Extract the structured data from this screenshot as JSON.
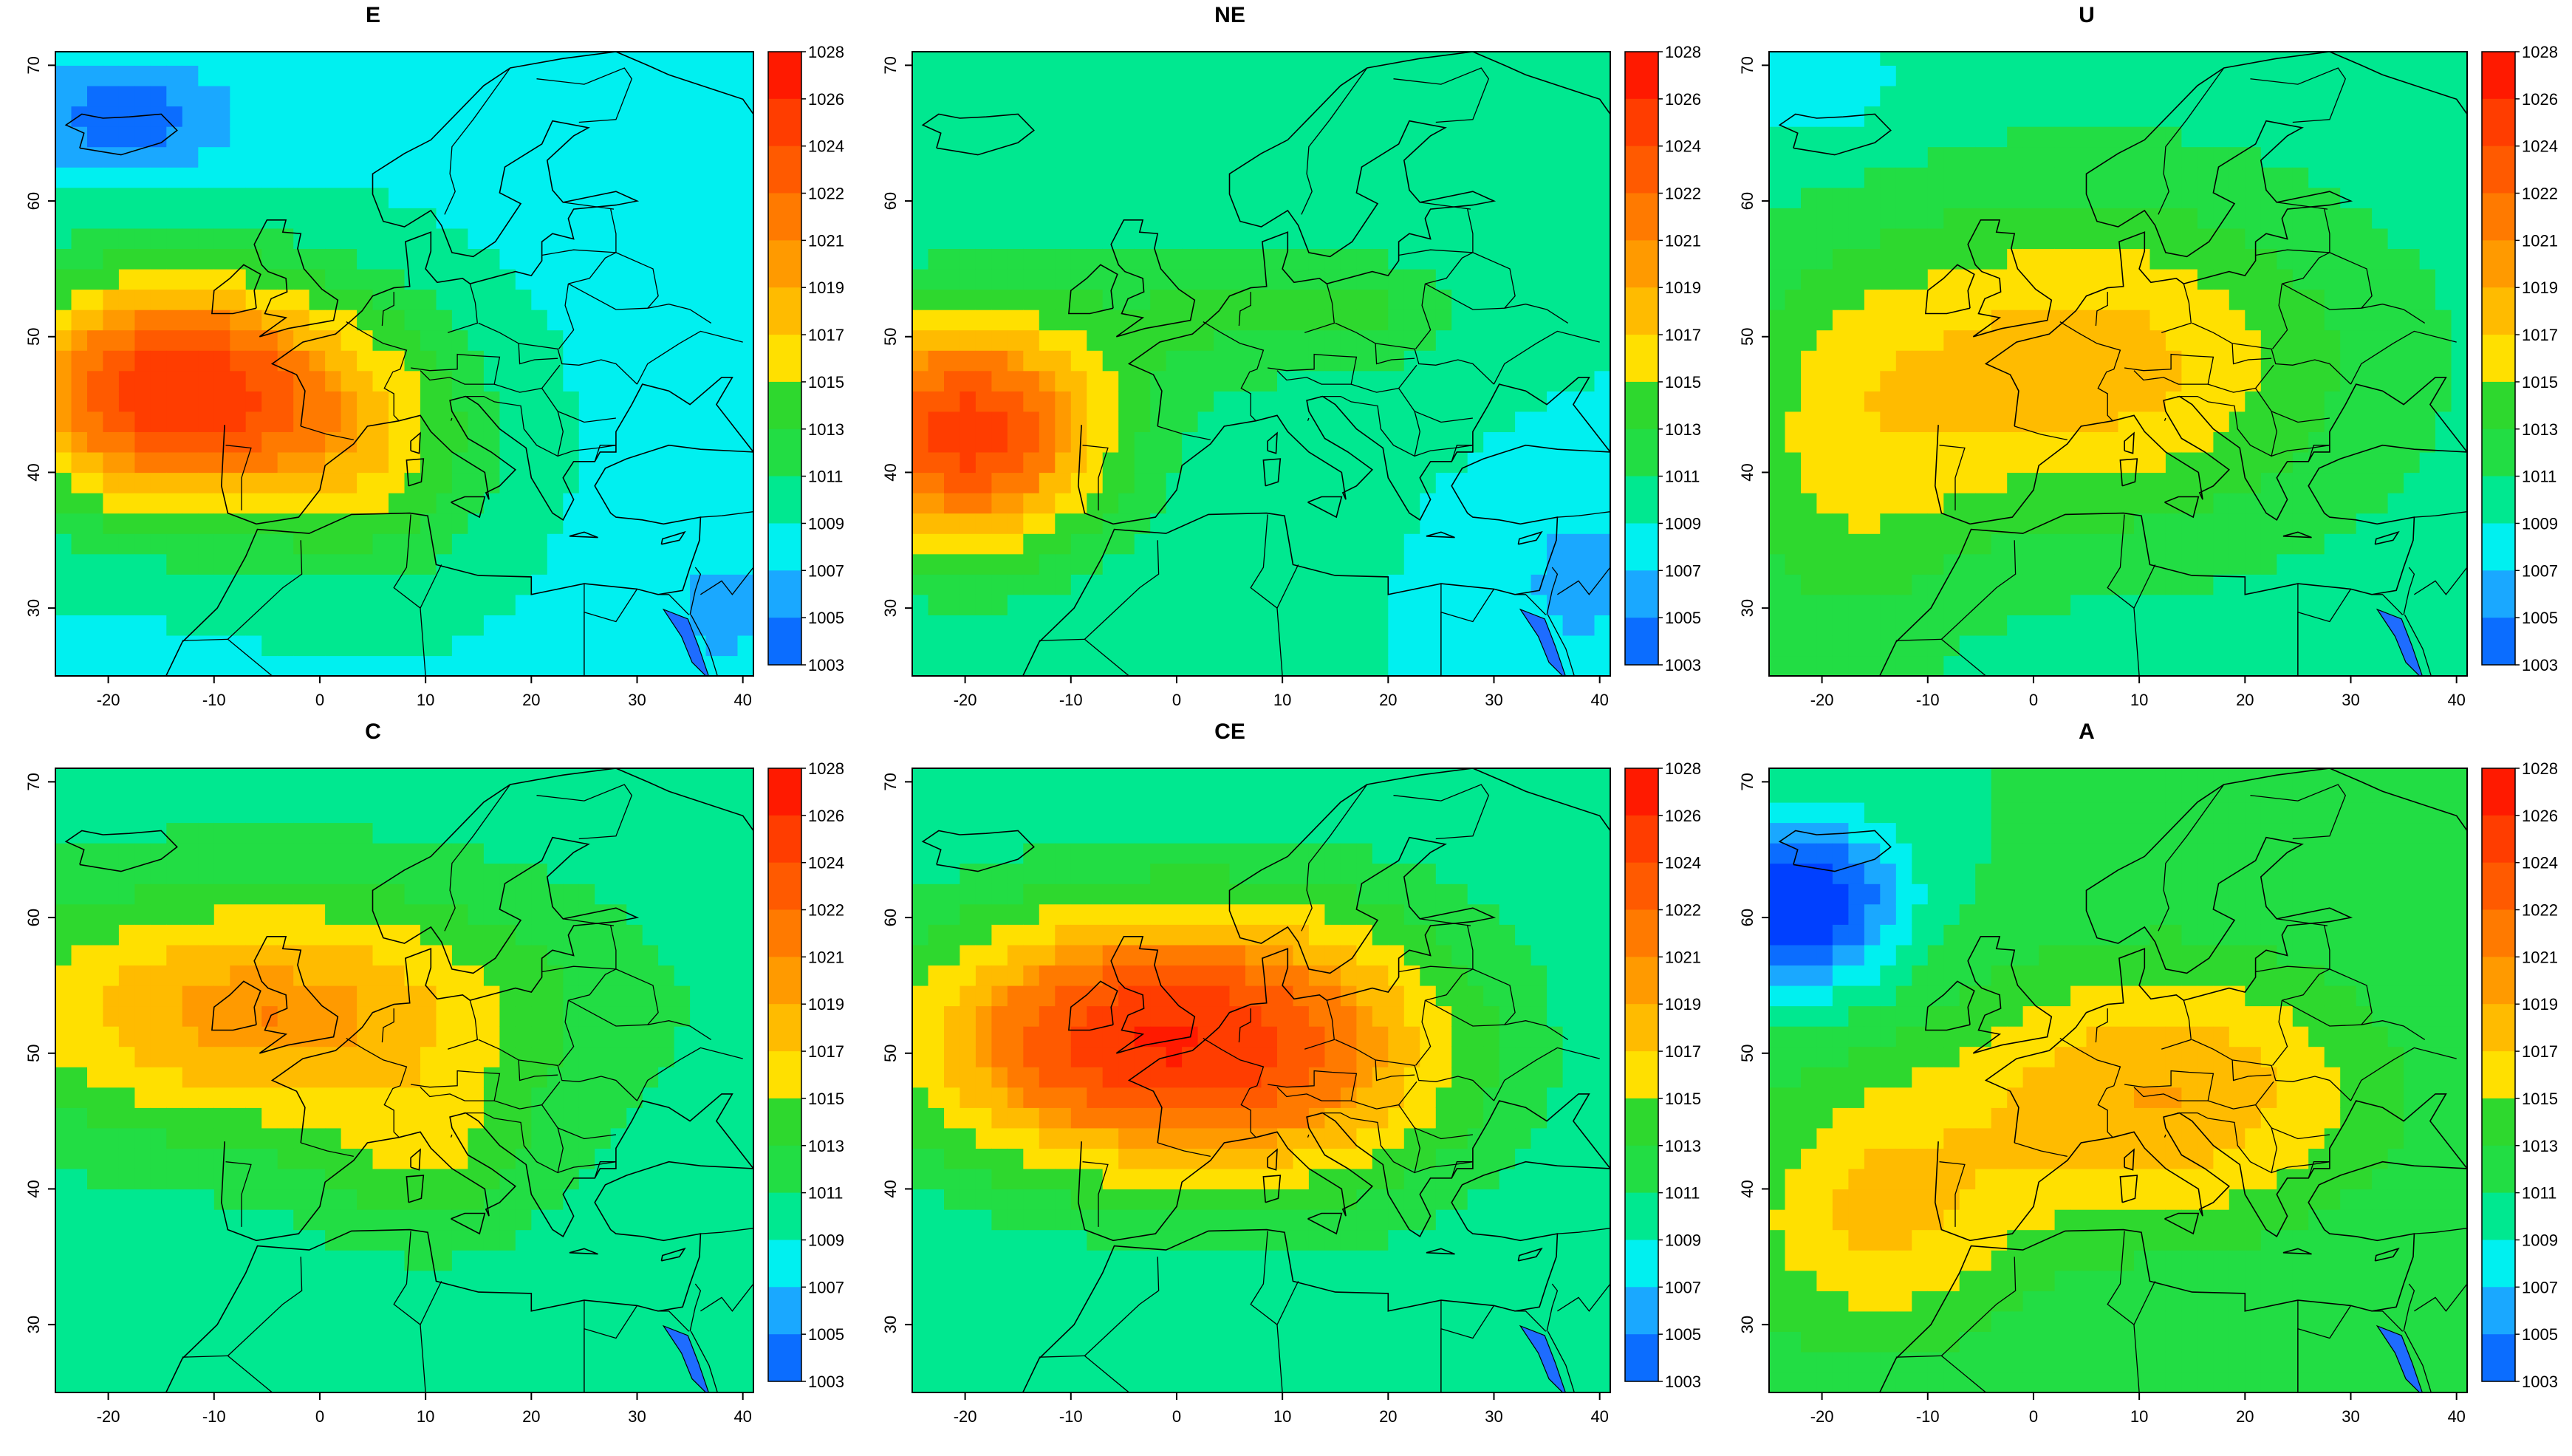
{
  "figure": {
    "x_ticks": [
      "-20",
      "-10",
      "0",
      "10",
      "20",
      "30",
      "40"
    ],
    "y_ticks": [
      "30",
      "40",
      "50",
      "60",
      "70"
    ],
    "colorbar": {
      "labels": [
        "1028",
        "1026",
        "1024",
        "1022",
        "1021",
        "1019",
        "1017",
        "1015",
        "1013",
        "1011",
        "1009",
        "1007",
        "1005",
        "1003"
      ],
      "colors": [
        "#ff1a00",
        "#ff3d00",
        "#ff5a00",
        "#ff7a00",
        "#ff9a00",
        "#ffbb00",
        "#ffe000",
        "#2ed82e",
        "#22dd44",
        "#00e890",
        "#00f0f0",
        "#1aa8ff",
        "#0b6dff",
        "#0040ff"
      ]
    },
    "panels": [
      {
        "title": "E",
        "theme": "E"
      },
      {
        "title": "NE",
        "theme": "NE"
      },
      {
        "title": "U",
        "theme": "U"
      },
      {
        "title": "C",
        "theme": "C"
      },
      {
        "title": "CE",
        "theme": "CE"
      },
      {
        "title": "A",
        "theme": "A"
      }
    ]
  },
  "chart_data": {
    "type": "heatmap",
    "x_range": [
      -25,
      41
    ],
    "y_range": [
      25,
      71
    ],
    "colorbar_levels": [
      1003,
      1005,
      1007,
      1009,
      1011,
      1013,
      1015,
      1017,
      1019,
      1021,
      1022,
      1024,
      1026,
      1028
    ],
    "panels": [
      "E",
      "NE",
      "U",
      "C",
      "CE",
      "A"
    ]
  }
}
